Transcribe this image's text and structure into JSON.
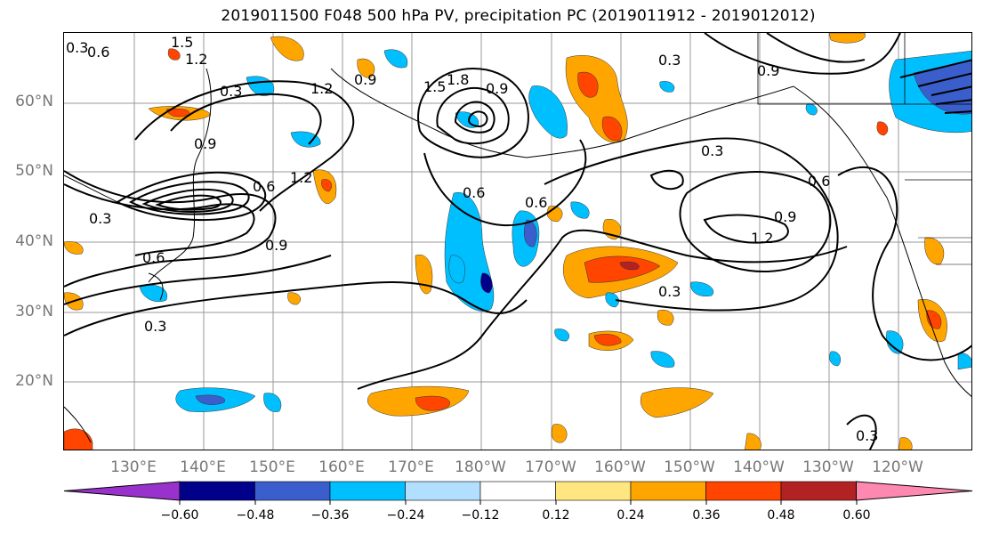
{
  "title": "2019011500 F048 500 hPa PV, precipitation PC (2019011912 - 2019012012)",
  "lat_labels": [
    "60°N",
    "50°N",
    "40°N",
    "30°N",
    "20°N"
  ],
  "lon_labels": [
    "130°E",
    "140°E",
    "150°E",
    "160°E",
    "170°E",
    "180°W",
    "170°W",
    "160°W",
    "150°W",
    "140°W",
    "130°W",
    "120°W"
  ],
  "contour_labels": [
    "0.3",
    "0.6",
    "1.5",
    "1.2",
    "0.3",
    "1.2",
    "0.9",
    "1.5",
    "1.8",
    "0.9",
    "0.3",
    "0.9",
    "0.9",
    "0.6",
    "1.2",
    "0.3",
    "0.6",
    "0.6",
    "0.6",
    "0.9",
    "1.2",
    "0.6",
    "0.9",
    "0.3",
    "0.3",
    "0.3",
    "0.3"
  ],
  "colorbar": {
    "ticks": [
      "−0.60",
      "−0.48",
      "−0.36",
      "−0.24",
      "−0.12",
      "0.12",
      "0.24",
      "0.36",
      "0.48",
      "0.60"
    ],
    "colors": [
      "#9932cc",
      "#00008b",
      "#3a5fcd",
      "#00bfff",
      "#b2dfff",
      "#ffffff",
      "#ffe680",
      "#ffa500",
      "#ff4500",
      "#b22222",
      "#ff88b0"
    ]
  },
  "palette": {
    "neg_light": "#b2dfff",
    "neg_mid": "#00bfff",
    "neg_dark": "#3a5fcd",
    "neg_darker": "#00008b",
    "pos_light": "#ffe680",
    "pos_mid": "#ffa500",
    "pos_dark": "#ff4500",
    "pos_darker": "#b22222",
    "grid": "#999999",
    "coast": "#000000"
  }
}
